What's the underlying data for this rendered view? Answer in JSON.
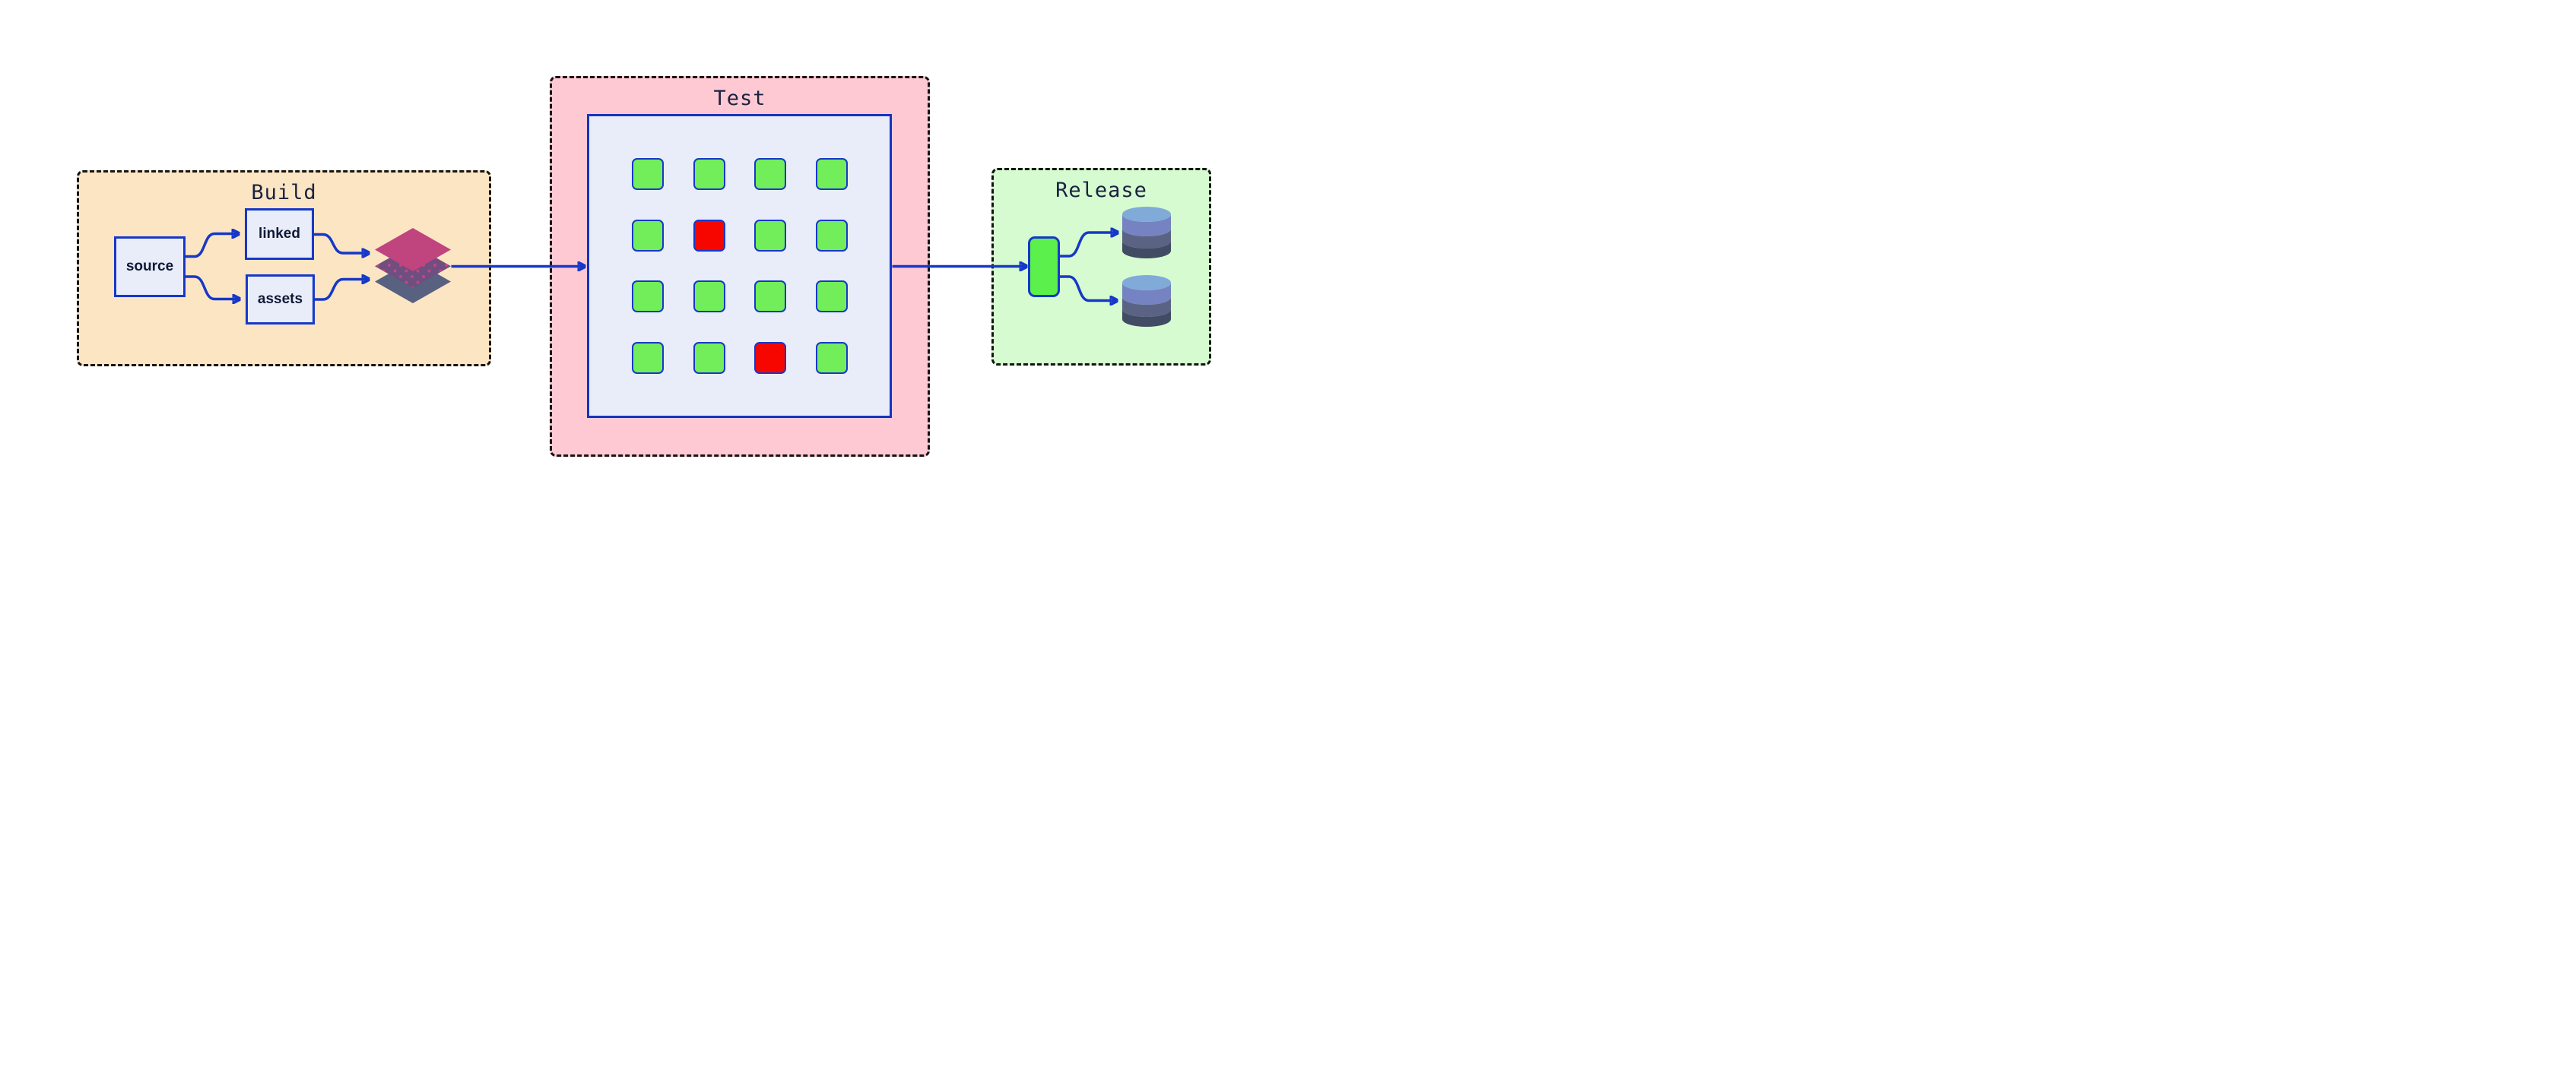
{
  "diagram": {
    "build": {
      "title": "Build",
      "nodes": {
        "source": "source",
        "linked": "linked",
        "assets": "assets"
      },
      "artifact_icon": "layer-stack"
    },
    "test": {
      "title": "Test",
      "grid": {
        "rows": 4,
        "cols": 4,
        "cells": [
          "pass",
          "pass",
          "pass",
          "pass",
          "pass",
          "fail",
          "pass",
          "pass",
          "pass",
          "pass",
          "pass",
          "pass",
          "pass",
          "pass",
          "fail",
          "pass"
        ]
      }
    },
    "release": {
      "title": "Release",
      "targets": [
        "database",
        "database"
      ]
    },
    "colors": {
      "blue": "#1638c8",
      "navy": "#1a2240",
      "label": "#111936",
      "build-bg": "#fbe5c3",
      "test-bg": "#ffc9d4",
      "release-bg": "#d6fbd0",
      "node-bg": "#e9edfa",
      "pass": "#71ee5a",
      "fail": "#f70600",
      "deploy": "#5bf04b",
      "pink": "#c0447e",
      "purple": "#6f4e80",
      "slate": "#58617f",
      "dot": "#c34580",
      "cyl-top": "#80aad8",
      "cyl1": "#7583c3",
      "cyl2": "#5a6384",
      "cyl3": "#424b64",
      "dash": "#141414"
    }
  }
}
